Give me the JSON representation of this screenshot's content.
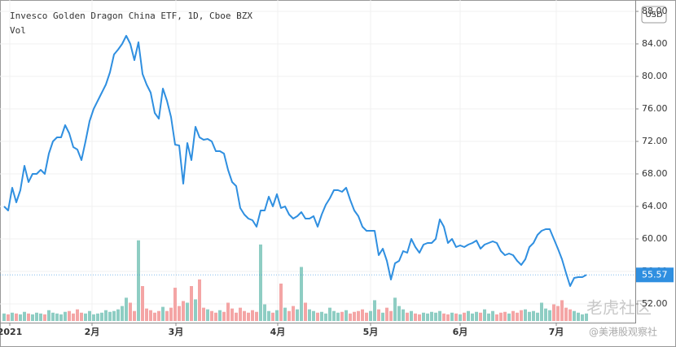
{
  "chart_data": {
    "type": "line",
    "title": "Invesco Golden Dragon China ETF, 1D, Cboe BZX",
    "subtitle": "Vol",
    "currency": "USD",
    "watermark": [
      "老虎社区",
      "@美港股观察社"
    ],
    "color": "#2f8fe0",
    "up_color": "#8ecdc3",
    "down_color": "#f4a5a5",
    "values": [
      64,
      63.5,
      66.3,
      64.5,
      66,
      69,
      67,
      68,
      68,
      68.5,
      68,
      70.5,
      72,
      72.5,
      72.5,
      74,
      73,
      71.3,
      71,
      69.7,
      72,
      74.5,
      76,
      77,
      78,
      79,
      80.5,
      82.7,
      83.3,
      84,
      85,
      84,
      82,
      84.2,
      80.3,
      79,
      78,
      75.5,
      74.8,
      78.5,
      77,
      75,
      71.6,
      71.5,
      66.8,
      71.8,
      69.7,
      73.8,
      72.5,
      72.2,
      72.3,
      72,
      70.8,
      70.8,
      70.5,
      68.5,
      67,
      66.5,
      63.8,
      63,
      62.5,
      62.3,
      61.5,
      63.5,
      63.5,
      65.2,
      64,
      65.5,
      63.8,
      64,
      63,
      62.5,
      62.8,
      63.3,
      62.5,
      62.5,
      62.8,
      61.5,
      63,
      64.2,
      65,
      66,
      66,
      65.8,
      66.3,
      64.8,
      63.5,
      62.8,
      61.5,
      61,
      61,
      61,
      58,
      58.8,
      57.3,
      55,
      57,
      57.3,
      58.5,
      58.3,
      60,
      59,
      58.3,
      59.3,
      59.5,
      59.5,
      60,
      62.4,
      61.5,
      59.5,
      60,
      59,
      59.2,
      59,
      59.3,
      59.5,
      59.8,
      58.8,
      59.3,
      59.5,
      59.7,
      59.5,
      58.5,
      58,
      58.2,
      58,
      57.3,
      56.8,
      57.5,
      59,
      59.5,
      60.5,
      61,
      61.2,
      61.2,
      60,
      58.8,
      57.5,
      55.8,
      54.2,
      55.2,
      55.3,
      55.3,
      55.57
    ],
    "volume": [
      9,
      8,
      10,
      9,
      8,
      11,
      9,
      8,
      10,
      9,
      8,
      13,
      10,
      9,
      8,
      11,
      12,
      9,
      14,
      10,
      9,
      12,
      8,
      9,
      10,
      13,
      11,
      12,
      14,
      18,
      28,
      22,
      12,
      97,
      42,
      15,
      13,
      10,
      12,
      17,
      12,
      16,
      40,
      18,
      24,
      22,
      42,
      26,
      50,
      16,
      14,
      12,
      10,
      13,
      11,
      22,
      15,
      10,
      16,
      12,
      10,
      13,
      11,
      92,
      20,
      12,
      10,
      13,
      45,
      16,
      12,
      18,
      14,
      65,
      22,
      14,
      12,
      10,
      11,
      9,
      16,
      12,
      10,
      11,
      13,
      9,
      11,
      12,
      14,
      10,
      12,
      25,
      14,
      10,
      16,
      12,
      28,
      18,
      14,
      10,
      12,
      9,
      8,
      10,
      9,
      11,
      10,
      12,
      9,
      8,
      10,
      9,
      8,
      10,
      12,
      9,
      11,
      10,
      14,
      9,
      12,
      8,
      10,
      11,
      9,
      12,
      10,
      13,
      14,
      11,
      12,
      10,
      22,
      15,
      13,
      20,
      18,
      25,
      16,
      14,
      12,
      10,
      8,
      9
    ],
    "xlim": [
      0,
      155
    ],
    "xticks": [
      {
        "value": 1.4,
        "label": "2021"
      },
      {
        "value": 21.6,
        "label": "2月"
      },
      {
        "value": 42.2,
        "label": "3月"
      },
      {
        "value": 67.2,
        "label": "4月"
      },
      {
        "value": 90,
        "label": "5月"
      },
      {
        "value": 112,
        "label": "6月"
      },
      {
        "value": 135.6,
        "label": "7月"
      }
    ],
    "ylim": [
      49.7,
      89.4
    ],
    "yticks": [
      {
        "value": 52,
        "label": "52.00"
      },
      {
        "value": 56,
        "label": "56.00"
      },
      {
        "value": 60,
        "label": "60.00"
      },
      {
        "value": 64,
        "label": "64.00"
      },
      {
        "value": 68,
        "label": "68.00"
      },
      {
        "value": 72,
        "label": "72.00"
      },
      {
        "value": 76,
        "label": "76.00"
      },
      {
        "value": 80,
        "label": "80.00"
      },
      {
        "value": 84,
        "label": "84.00"
      },
      {
        "value": 88,
        "label": "88.00"
      }
    ]
  }
}
